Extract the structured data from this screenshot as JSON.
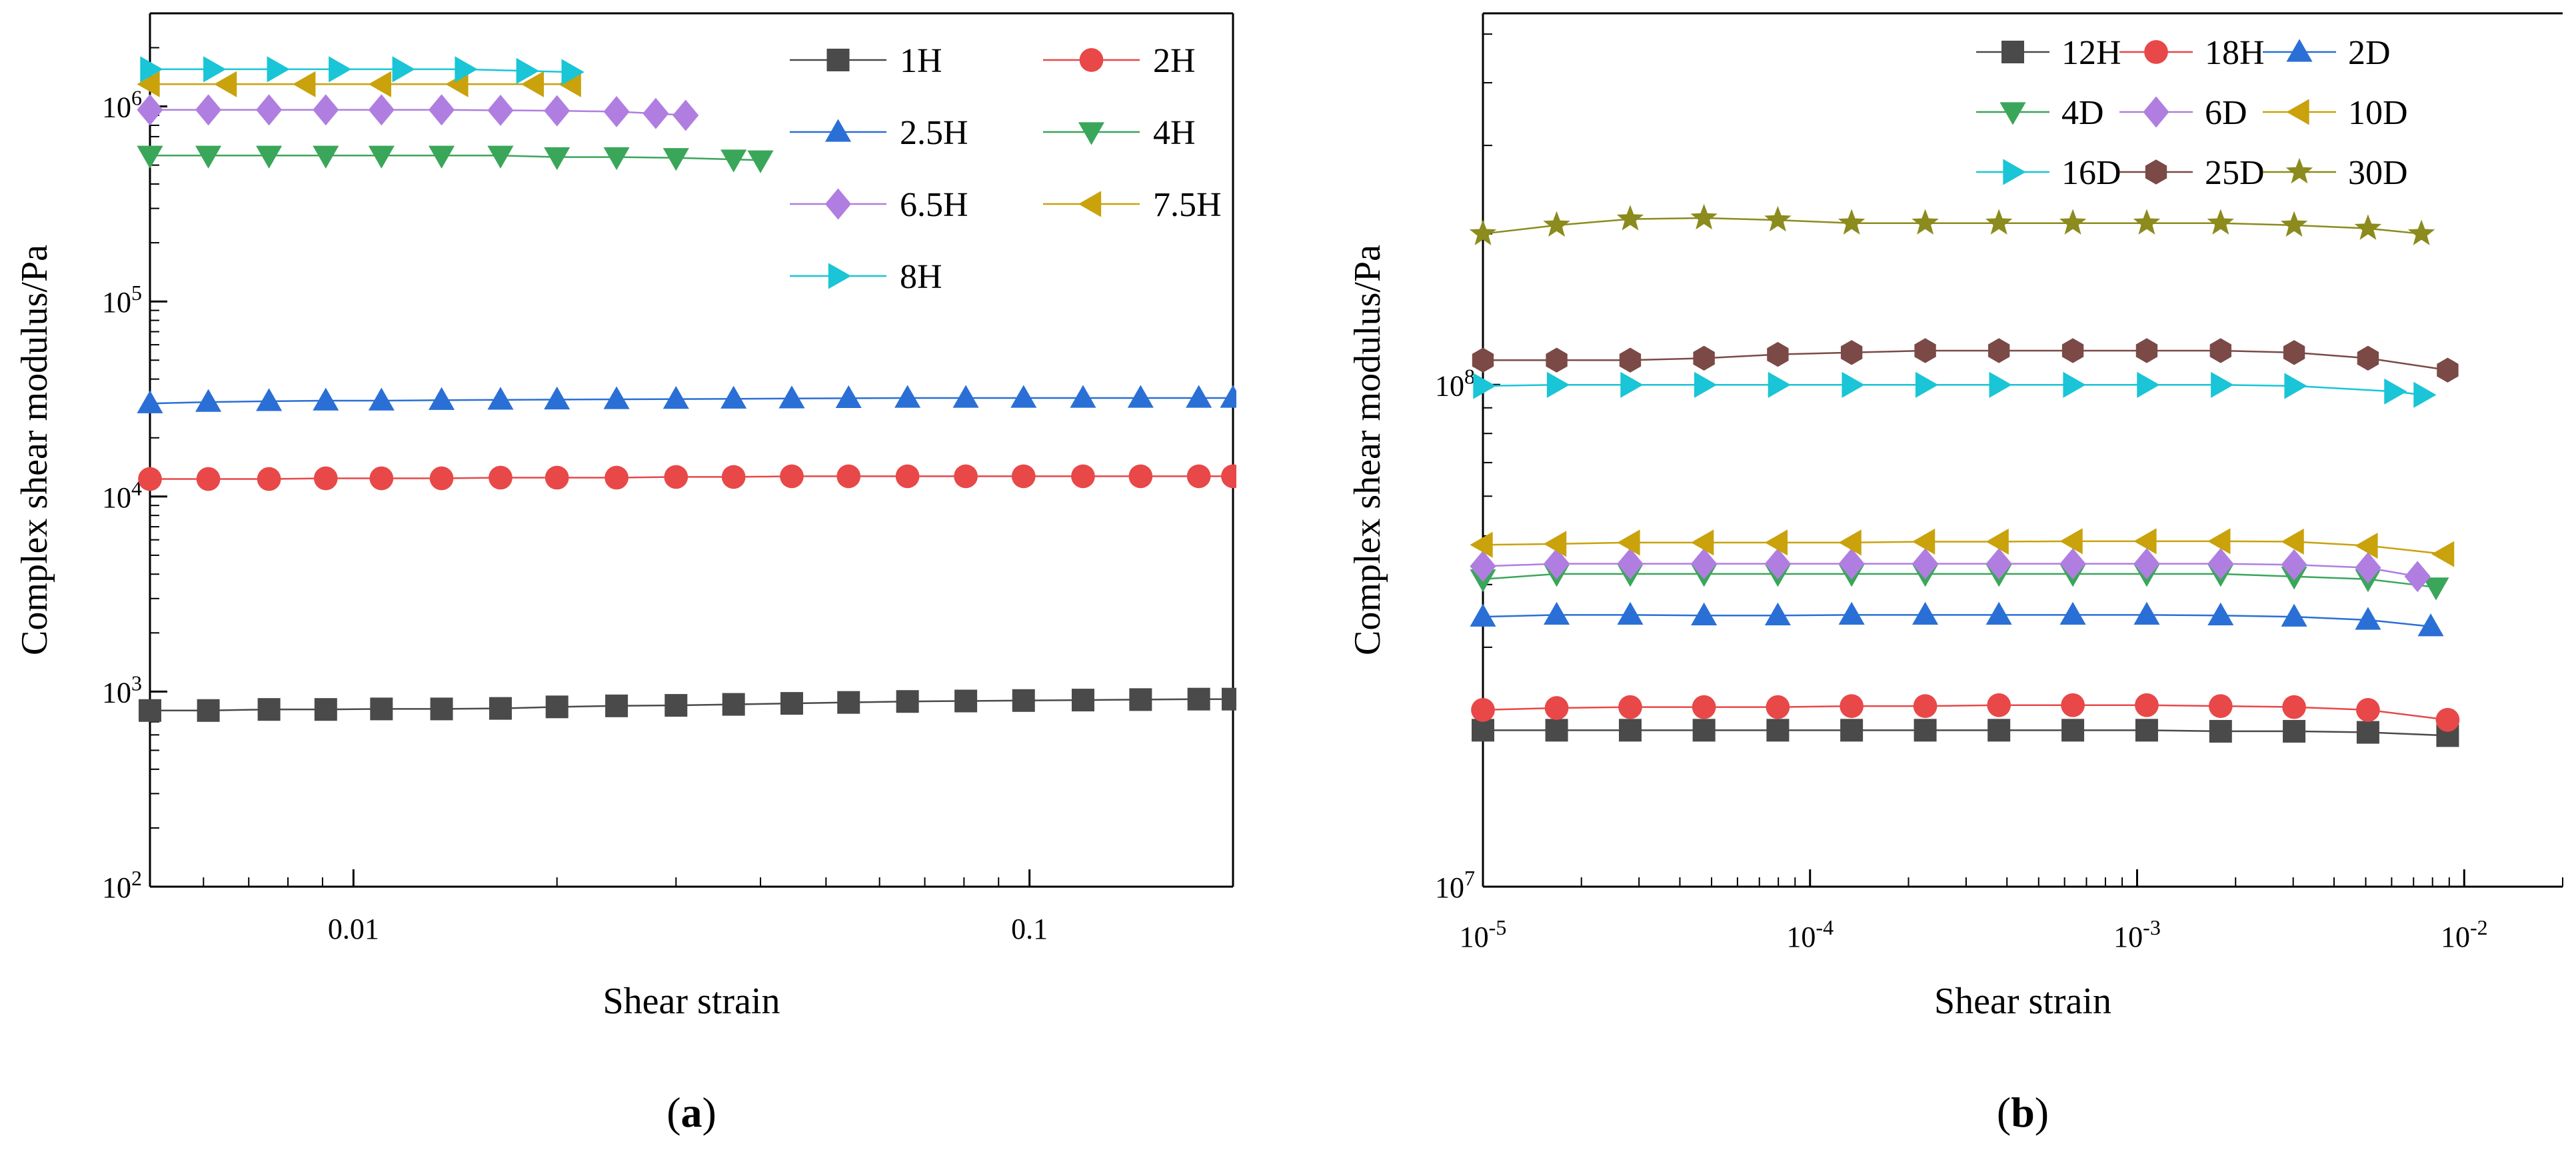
{
  "chart_data": [
    {
      "type": "scatter",
      "panel_label_parts": [
        "(",
        "a",
        ")"
      ],
      "xlabel": "Shear strain",
      "ylabel": "Complex shear modulus/Pa",
      "xscale": "log",
      "yscale": "log",
      "xlim": [
        0.005,
        0.2
      ],
      "ylim": [
        100,
        3000000
      ],
      "x_ticks": [
        {
          "value": 0.01,
          "label": "0.01"
        },
        {
          "value": 0.1,
          "label": "0.1"
        }
      ],
      "y_ticks": [
        {
          "value": 100,
          "base": "10",
          "exp": "2"
        },
        {
          "value": 1000,
          "base": "10",
          "exp": "3"
        },
        {
          "value": 10000,
          "base": "10",
          "exp": "4"
        },
        {
          "value": 100000,
          "base": "10",
          "exp": "5"
        },
        {
          "value": 1000000,
          "base": "10",
          "exp": "6"
        }
      ],
      "legend_position": "top-right",
      "legend_columns": 2,
      "series": [
        {
          "name": "1H",
          "color": "#4a4a4a",
          "marker": "square",
          "x": [
            0.005,
            0.0061,
            0.0075,
            0.0091,
            0.011,
            0.0135,
            0.0165,
            0.02,
            0.0245,
            0.03,
            0.0365,
            0.0445,
            0.054,
            0.066,
            0.0805,
            0.098,
            0.12,
            0.146,
            0.178,
            0.2
          ],
          "y": [
            800,
            800,
            810,
            810,
            815,
            815,
            820,
            835,
            845,
            850,
            860,
            870,
            880,
            890,
            895,
            900,
            905,
            910,
            915,
            915
          ]
        },
        {
          "name": "2H",
          "color": "#e84848",
          "marker": "circle",
          "x": [
            0.005,
            0.0061,
            0.0075,
            0.0091,
            0.011,
            0.0135,
            0.0165,
            0.02,
            0.0245,
            0.03,
            0.0365,
            0.0445,
            0.054,
            0.066,
            0.0805,
            0.098,
            0.12,
            0.146,
            0.178,
            0.2
          ],
          "y": [
            12300,
            12300,
            12300,
            12400,
            12400,
            12400,
            12500,
            12500,
            12500,
            12600,
            12600,
            12700,
            12700,
            12700,
            12700,
            12700,
            12700,
            12700,
            12700,
            12700
          ]
        },
        {
          "name": "2.5H",
          "color": "#2a6fd6",
          "marker": "triangle-up",
          "x": [
            0.005,
            0.0061,
            0.0075,
            0.0091,
            0.011,
            0.0135,
            0.0165,
            0.02,
            0.0245,
            0.03,
            0.0365,
            0.0445,
            0.054,
            0.066,
            0.0805,
            0.098,
            0.12,
            0.146,
            0.178,
            0.2
          ],
          "y": [
            30000,
            30500,
            30800,
            31000,
            31000,
            31200,
            31300,
            31400,
            31500,
            31600,
            31700,
            31800,
            31900,
            32000,
            32000,
            32000,
            32000,
            32000,
            32000,
            32000
          ]
        },
        {
          "name": "4H",
          "color": "#3aa65a",
          "marker": "triangle-down",
          "x": [
            0.005,
            0.0061,
            0.0075,
            0.0091,
            0.011,
            0.0135,
            0.0165,
            0.02,
            0.0245,
            0.03,
            0.0365,
            0.04
          ],
          "y": [
            560000,
            560000,
            560000,
            560000,
            560000,
            560000,
            560000,
            550000,
            550000,
            545000,
            535000,
            530000
          ]
        },
        {
          "name": "6.5H",
          "color": "#b07ee0",
          "marker": "diamond",
          "x": [
            0.005,
            0.0061,
            0.0075,
            0.0091,
            0.011,
            0.0135,
            0.0165,
            0.02,
            0.0245,
            0.028,
            0.031
          ],
          "y": [
            960000,
            960000,
            960000,
            960000,
            960000,
            960000,
            955000,
            950000,
            940000,
            920000,
            900000
          ]
        },
        {
          "name": "7.5H",
          "color": "#c9a20c",
          "marker": "triangle-left",
          "x": [
            0.005,
            0.0065,
            0.0085,
            0.011,
            0.0143,
            0.0185,
            0.021
          ],
          "y": [
            1300000,
            1300000,
            1300000,
            1300000,
            1300000,
            1300000,
            1300000
          ]
        },
        {
          "name": "8H",
          "color": "#19c5d6",
          "marker": "triangle-right",
          "x": [
            0.005,
            0.0062,
            0.0077,
            0.0095,
            0.0118,
            0.0146,
            0.018,
            0.021
          ],
          "y": [
            1550000,
            1550000,
            1550000,
            1550000,
            1550000,
            1550000,
            1520000,
            1500000
          ]
        }
      ]
    },
    {
      "type": "scatter",
      "panel_label_parts": [
        "(",
        "b",
        ")"
      ],
      "xlabel": "Shear strain",
      "ylabel": "Complex shear modulus/Pa",
      "xscale": "log",
      "yscale": "log",
      "xlim": [
        1e-05,
        0.02
      ],
      "ylim": [
        10000000,
        550000000
      ],
      "x_ticks": [
        {
          "value": 1e-05,
          "base": "10",
          "exp": "-5"
        },
        {
          "value": 0.0001,
          "base": "10",
          "exp": "-4"
        },
        {
          "value": 0.001,
          "base": "10",
          "exp": "-3"
        },
        {
          "value": 0.01,
          "base": "10",
          "exp": "-2"
        }
      ],
      "y_ticks": [
        {
          "value": 10000000,
          "base": "10",
          "exp": "7"
        },
        {
          "value": 100000000,
          "base": "10",
          "exp": "8"
        }
      ],
      "legend_position": "top-right",
      "legend_columns": 3,
      "series": [
        {
          "name": "12H",
          "color": "#4a4a4a",
          "marker": "square",
          "x": [
            1e-05,
            1.68e-05,
            2.82e-05,
            4.74e-05,
            7.97e-05,
            0.000134,
            0.000225,
            0.000378,
            0.000636,
            0.00107,
            0.0018,
            0.00302,
            0.00508,
            0.0089
          ],
          "y": [
            20500000,
            20500000,
            20500000,
            20500000,
            20500000,
            20500000,
            20500000,
            20500000,
            20500000,
            20500000,
            20400000,
            20400000,
            20300000,
            20000000
          ]
        },
        {
          "name": "18H",
          "color": "#e84848",
          "marker": "circle",
          "x": [
            1e-05,
            1.68e-05,
            2.82e-05,
            4.74e-05,
            7.97e-05,
            0.000134,
            0.000225,
            0.000378,
            0.000636,
            0.00107,
            0.0018,
            0.00302,
            0.00508,
            0.0089
          ],
          "y": [
            22500000,
            22700000,
            22800000,
            22800000,
            22800000,
            22900000,
            22900000,
            23000000,
            23000000,
            23000000,
            22900000,
            22800000,
            22500000,
            21500000
          ]
        },
        {
          "name": "2D",
          "color": "#2a6fd6",
          "marker": "triangle-up",
          "x": [
            1e-05,
            1.68e-05,
            2.82e-05,
            4.74e-05,
            7.97e-05,
            0.000134,
            0.000225,
            0.000378,
            0.000636,
            0.00107,
            0.0018,
            0.00302,
            0.00508,
            0.0079
          ],
          "y": [
            34500000,
            34800000,
            34800000,
            34700000,
            34700000,
            34800000,
            34800000,
            34800000,
            34800000,
            34800000,
            34700000,
            34500000,
            34000000,
            33000000
          ]
        },
        {
          "name": "4D",
          "color": "#3aa65a",
          "marker": "triangle-down",
          "x": [
            1e-05,
            1.68e-05,
            2.82e-05,
            4.74e-05,
            7.97e-05,
            0.000134,
            0.000225,
            0.000378,
            0.000636,
            0.00107,
            0.0018,
            0.00302,
            0.00508,
            0.0082
          ],
          "y": [
            41000000,
            42000000,
            42000000,
            42000000,
            42000000,
            42000000,
            42000000,
            42000000,
            42000000,
            42000000,
            42000000,
            41500000,
            41000000,
            39500000
          ]
        },
        {
          "name": "6D",
          "color": "#b07ee0",
          "marker": "diamond",
          "x": [
            1e-05,
            1.68e-05,
            2.82e-05,
            4.74e-05,
            7.97e-05,
            0.000134,
            0.000225,
            0.000378,
            0.000636,
            0.00107,
            0.0018,
            0.00302,
            0.00508,
            0.0072
          ],
          "y": [
            43500000,
            44000000,
            44000000,
            44000000,
            44000000,
            44000000,
            44000000,
            44000000,
            44000000,
            44000000,
            44000000,
            43800000,
            43200000,
            41500000
          ]
        },
        {
          "name": "10D",
          "color": "#c9a20c",
          "marker": "triangle-left",
          "x": [
            1e-05,
            1.68e-05,
            2.82e-05,
            4.74e-05,
            7.97e-05,
            0.000134,
            0.000225,
            0.000378,
            0.000636,
            0.00107,
            0.0018,
            0.00302,
            0.00508,
            0.0087
          ],
          "y": [
            48000000,
            48200000,
            48500000,
            48500000,
            48500000,
            48500000,
            48700000,
            48700000,
            48800000,
            48800000,
            48800000,
            48700000,
            47800000,
            46000000
          ]
        },
        {
          "name": "16D",
          "color": "#19c5d6",
          "marker": "triangle-right",
          "x": [
            1e-05,
            1.68e-05,
            2.82e-05,
            4.74e-05,
            7.97e-05,
            0.000134,
            0.000225,
            0.000378,
            0.000636,
            0.00107,
            0.0018,
            0.00302,
            0.0061,
            0.0075
          ],
          "y": [
            99500000,
            100000000,
            100000000,
            100000000,
            100000000,
            100000000,
            100000000,
            100000000,
            100000000,
            100000000,
            100000000,
            99500000,
            97000000,
            95500000
          ]
        },
        {
          "name": "25D",
          "color": "#7b4a46",
          "marker": "hexagon",
          "x": [
            1e-05,
            1.68e-05,
            2.82e-05,
            4.74e-05,
            7.97e-05,
            0.000134,
            0.000225,
            0.000378,
            0.000636,
            0.00107,
            0.0018,
            0.00302,
            0.00508,
            0.0089
          ],
          "y": [
            112000000,
            112000000,
            112000000,
            113000000,
            115000000,
            116000000,
            117000000,
            117000000,
            117000000,
            117000000,
            117000000,
            116000000,
            113000000,
            107000000
          ]
        },
        {
          "name": "30D",
          "color": "#8b8b1e",
          "marker": "star",
          "x": [
            1e-05,
            1.68e-05,
            2.82e-05,
            4.74e-05,
            7.97e-05,
            0.000134,
            0.000225,
            0.000378,
            0.000636,
            0.00107,
            0.0018,
            0.00302,
            0.00508,
            0.0074
          ],
          "y": [
            200000000,
            208000000,
            214000000,
            215000000,
            213000000,
            210000000,
            210000000,
            210000000,
            210000000,
            210000000,
            210000000,
            208000000,
            205000000,
            200000000
          ]
        }
      ]
    }
  ]
}
